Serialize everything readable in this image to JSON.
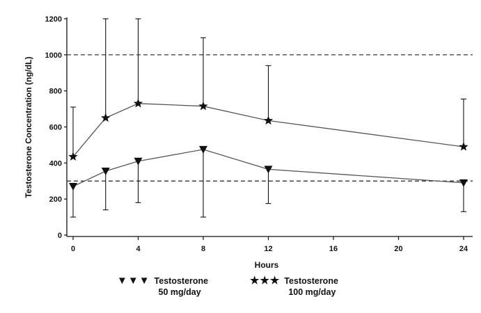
{
  "chart_data": {
    "type": "line",
    "xlabel": "Hours",
    "ylabel": "Testosterone Concentration (ng/dL)",
    "xlim": [
      0,
      24
    ],
    "ylim": [
      0,
      1200
    ],
    "x_ticks": [
      0,
      4,
      8,
      12,
      16,
      20,
      24
    ],
    "x_tick_labels": [
      "0",
      "4",
      "8",
      "12",
      "16",
      "20",
      "24"
    ],
    "y_ticks": [
      0,
      200,
      400,
      600,
      800,
      1000,
      1200
    ],
    "y_tick_labels": [
      "0",
      "200",
      "400",
      "600",
      "800",
      "1000",
      "1200"
    ],
    "reference_lines": [
      1000,
      300
    ],
    "grid": false,
    "legend_position": "bottom",
    "series": [
      {
        "legend_glyphs": "▼▼▼",
        "legend_line1": "Testosterone",
        "legend_line2": "50 mg/day",
        "marker": "triangle-down",
        "color": "#111111",
        "x": [
          0,
          2,
          4,
          8,
          12,
          24
        ],
        "y": [
          270,
          355,
          410,
          475,
          365,
          290
        ],
        "error_low": [
          100,
          140,
          180,
          100,
          175,
          130
        ],
        "error_high": [
          null,
          null,
          null,
          null,
          null,
          null
        ]
      },
      {
        "legend_glyphs": "★★★",
        "legend_line1": "Testosterone",
        "legend_line2": "100 mg/day",
        "marker": "star",
        "color": "#111111",
        "x": [
          0,
          2,
          4,
          8,
          12,
          24
        ],
        "y": [
          435,
          650,
          730,
          715,
          635,
          490
        ],
        "error_low": [
          null,
          null,
          null,
          null,
          null,
          null
        ],
        "error_high": [
          710,
          1200,
          1200,
          1095,
          940,
          755
        ]
      }
    ]
  }
}
